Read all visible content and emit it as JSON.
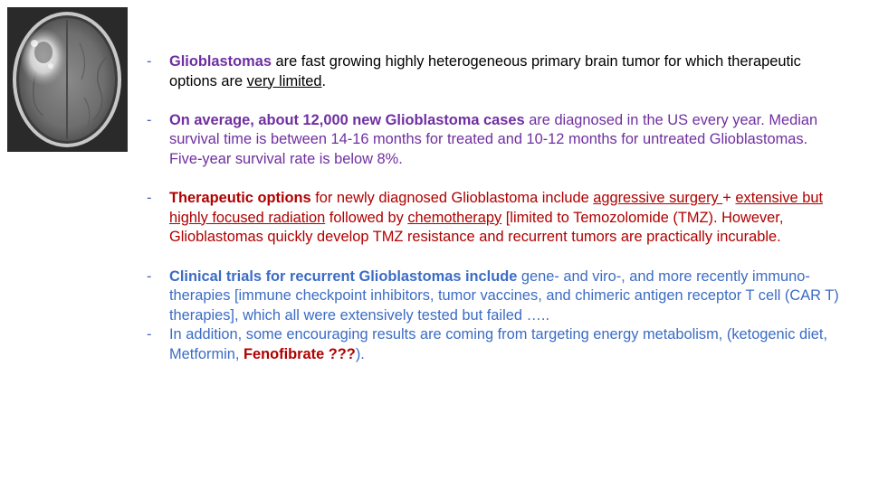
{
  "image": {
    "icon": "mri-brain-scan-image"
  },
  "bullet_symbol": "-",
  "bullets": [
    {
      "p1": "Glioblastomas",
      "p2": " are fast growing highly heterogeneous primary brain tumor for which therapeutic options are ",
      "p3": "very limited",
      "p4": "."
    },
    {
      "p1": "On average, about 12,000 new Glioblastoma cases",
      "p2": " are diagnosed in the US every year. Median survival time is between 14-16 months for treated and 10-12 months for untreated Glioblastomas. Five-year survival rate is below 8%."
    },
    {
      "p1": "Therapeutic options",
      "p2": " for newly diagnosed Glioblastoma include ",
      "p3": "aggressive surgery ",
      "p4": "+ ",
      "p5": "extensive but highly focused radiation",
      "p6": " followed by ",
      "p7": "chemotherapy",
      "p8": " [limited to Temozolomide (TMZ). However, Glioblastomas quickly develop TMZ resistance and recurrent tumors are practically incurable."
    },
    {
      "p1": "Clinical trials for recurrent Glioblastomas include",
      "p2": " gene- and viro-, and more recently immuno- therapies [immune checkpoint inhibitors, tumor vaccines, and chimeric antigen receptor T cell (CAR T) therapies], which all were extensively tested but failed ….."
    },
    {
      "p1": "In addition, some encouraging results are coming from targeting energy metabolism, (ketogenic diet, Metformin, ",
      "p2": "Fenofibrate ???",
      "p3": ")."
    }
  ],
  "colors": {
    "purple": "#6f2fa1",
    "red": "#b00000",
    "blue": "#3b6cc4",
    "black": "#000000"
  }
}
